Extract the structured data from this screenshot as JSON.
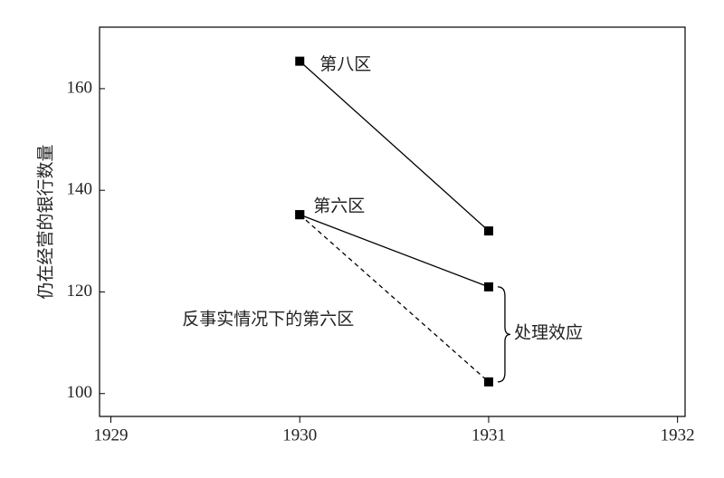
{
  "chart_data": {
    "type": "line",
    "ylabel": "仍在经营的银行数量",
    "x": [
      1930,
      1931
    ],
    "series": [
      {
        "name": "第八区",
        "color": "#000000",
        "dashed": false,
        "values": [
          165.4,
          132
        ]
      },
      {
        "name": "第六区",
        "color": "#000000",
        "dashed": false,
        "values": [
          135.2,
          121
        ]
      },
      {
        "name": "反事实情况下的第六区",
        "color": "#000000",
        "dashed": true,
        "values": [
          135.2,
          102.3
        ]
      }
    ],
    "annotations": [
      "处理效应"
    ],
    "xlim": [
      1928.94,
      1932.04
    ],
    "xticks": [
      1929,
      1930,
      1931,
      1932
    ],
    "ylim": [
      95.5,
      172.1
    ],
    "yticks": [
      100,
      120,
      140,
      160
    ],
    "grid": false
  }
}
